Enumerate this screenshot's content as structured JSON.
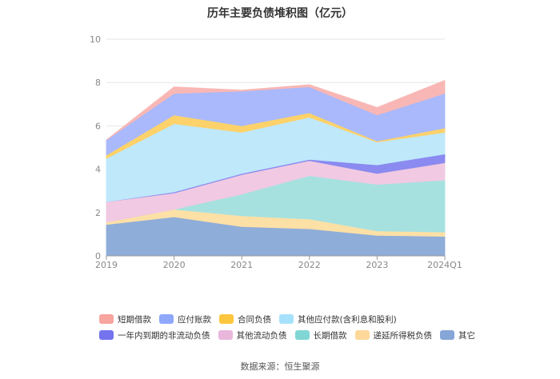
{
  "chart_data": {
    "type": "area",
    "stacked": true,
    "title": "历年主要负债堆积图（亿元）",
    "categories": [
      "2019",
      "2020",
      "2021",
      "2022",
      "2023",
      "2024Q1"
    ],
    "ylim": [
      0,
      10
    ],
    "yticks": [
      "0",
      "2",
      "4",
      "6",
      "8",
      "10"
    ],
    "grid": true,
    "legend_position": "bottom",
    "series": [
      {
        "name": "其它",
        "color": "#8fadd9",
        "values": [
          1.45,
          1.8,
          1.35,
          1.25,
          0.95,
          0.9
        ]
      },
      {
        "name": "递延所得税负债",
        "color": "#fde0a6",
        "values": [
          0.1,
          0.35,
          0.5,
          0.45,
          0.2,
          0.2
        ]
      },
      {
        "name": "长期借款",
        "color": "#a6e1e0",
        "values": [
          0.0,
          0.0,
          1.0,
          2.0,
          2.15,
          2.4
        ]
      },
      {
        "name": "其他流动负债",
        "color": "#f1c9e2",
        "values": [
          0.95,
          0.75,
          0.9,
          0.7,
          0.5,
          0.8
        ]
      },
      {
        "name": "一年内到期的非流动负债",
        "color": "#8a8af0",
        "values": [
          0.0,
          0.05,
          0.05,
          0.05,
          0.4,
          0.4
        ]
      },
      {
        "name": "其他应付款(含利息和股利)",
        "color": "#bfe8fb",
        "values": [
          2.0,
          3.15,
          1.9,
          1.95,
          1.05,
          1.0
        ]
      },
      {
        "name": "合同负债",
        "color": "#fdd26a",
        "values": [
          0.15,
          0.4,
          0.3,
          0.2,
          0.05,
          0.2
        ]
      },
      {
        "name": "应付账款",
        "color": "#a9b9fb",
        "values": [
          0.7,
          1.0,
          1.6,
          1.2,
          1.2,
          1.6
        ]
      },
      {
        "name": "短期借款",
        "color": "#f8b7b5",
        "values": [
          0.0,
          0.3,
          0.05,
          0.1,
          0.35,
          0.6
        ]
      }
    ]
  },
  "legend": [
    [
      {
        "label": "短期借款",
        "color": "#f8a49f"
      },
      {
        "label": "应付账款",
        "color": "#8fa8fb"
      },
      {
        "label": "合同负债",
        "color": "#fdc63e"
      },
      {
        "label": "其他应付款(含利息和股利)",
        "color": "#a6e1fb"
      }
    ],
    [
      {
        "label": "一年内到期的非流动负债",
        "color": "#7474ee"
      },
      {
        "label": "其他流动负债",
        "color": "#eab7dc"
      },
      {
        "label": "长期借款",
        "color": "#80d6d4"
      },
      {
        "label": "递延所得税负债",
        "color": "#fdd89a"
      },
      {
        "label": "其它",
        "color": "#86a6d8"
      }
    ]
  ],
  "source": "数据来源：恒生聚源"
}
